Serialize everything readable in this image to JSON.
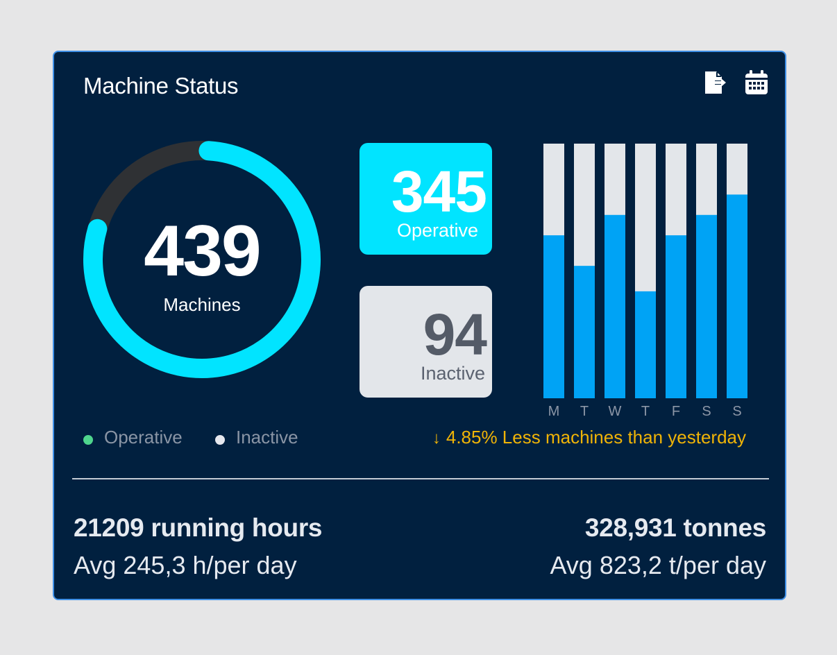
{
  "card": {
    "title": "Machine Status",
    "icons": [
      "file-export-icon",
      "calendar-icon"
    ]
  },
  "colors": {
    "operative": "#01e4ff",
    "inactive_ring": "#2f3134",
    "bar_fill": "#00a3f5",
    "bar_track": "#e3e6ea",
    "legend_operative": "#4fd58d",
    "legend_inactive": "#e6e8ee",
    "change": "#f0b407"
  },
  "ring": {
    "total": "439",
    "label": "Machines",
    "operative": 345,
    "inactive": 94
  },
  "stats": {
    "operative": {
      "value": "345",
      "label": "Operative"
    },
    "inactive": {
      "value": "94",
      "label": "Inactive"
    }
  },
  "chart_data": {
    "type": "bar",
    "categories": [
      "M",
      "T",
      "W",
      "T",
      "F",
      "S",
      "S"
    ],
    "series": [
      {
        "values": [
          0.64,
          0.52,
          0.72,
          0.42,
          0.64,
          0.72,
          0.8
        ]
      }
    ],
    "ylim": [
      0,
      1
    ],
    "grid": false,
    "stacked_remainder": true
  },
  "legend": {
    "operative": "Operative",
    "inactive": "Inactive"
  },
  "change": {
    "arrow": "↓",
    "text": "4.85% Less machines than yesterday"
  },
  "summary": {
    "hours": "21209 running hours",
    "hours_avg": "Avg 245,3 h/per day",
    "tonnes": "328,931 tonnes",
    "tonnes_avg": "Avg 823,2 t/per day"
  }
}
